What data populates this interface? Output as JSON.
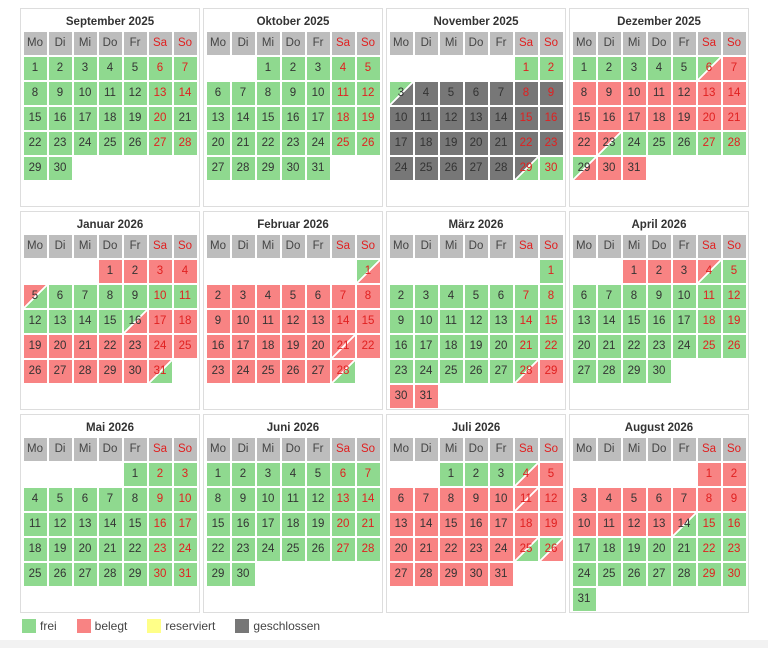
{
  "colors": {
    "f": "#8fd98f",
    "b": "#f88383",
    "c": "#777777",
    "r": "#ffff88"
  },
  "weekdays": [
    "Mo",
    "Di",
    "Mi",
    "Do",
    "Fr",
    "Sa",
    "So"
  ],
  "months": [
    {
      "title": "September 2025",
      "offset": 0,
      "days": "f*30",
      "plain_days": [
        21
      ]
    },
    {
      "title": "Oktober 2025",
      "offset": 2,
      "days": "f*31"
    },
    {
      "title": "November 2025",
      "offset": 5,
      "days": [
        "f",
        "f",
        "fc",
        "c*25",
        "cf",
        "f"
      ]
    },
    {
      "title": "Dezember 2025",
      "offset": 0,
      "days": [
        "f*5",
        "fb",
        "b*16",
        "bf",
        "f*5",
        "fb",
        "b",
        "b"
      ]
    },
    {
      "title": "Januar 2026",
      "offset": 3,
      "days": [
        "b*4",
        "bf",
        "f*10",
        "fb",
        "b*14",
        "bf"
      ]
    },
    {
      "title": "Februar 2026",
      "offset": 6,
      "days": [
        "fb",
        "b*19",
        "bb",
        "b*6",
        "bf"
      ]
    },
    {
      "title": "März 2026",
      "offset": 6,
      "days": [
        "f*27",
        "fb",
        "b*3"
      ]
    },
    {
      "title": "April 2026",
      "offset": 2,
      "days": [
        "b*3",
        "bf",
        "f*26"
      ]
    },
    {
      "title": "Mai 2026",
      "offset": 4,
      "days": "f*31"
    },
    {
      "title": "Juni 2026",
      "offset": 0,
      "days": "f*30"
    },
    {
      "title": "Juli 2026",
      "offset": 2,
      "days": [
        "f*3",
        "fb",
        "b*6",
        "bb",
        "b*13",
        "bf",
        "fb",
        "b*5"
      ]
    },
    {
      "title": "August 2026",
      "offset": 5,
      "days": [
        "b*13",
        "bf",
        "f*17"
      ]
    }
  ],
  "legend": [
    {
      "key": "f",
      "label": "frei"
    },
    {
      "key": "b",
      "label": "belegt"
    },
    {
      "key": "r",
      "label": "reserviert"
    },
    {
      "key": "c",
      "label": "geschlossen"
    }
  ]
}
